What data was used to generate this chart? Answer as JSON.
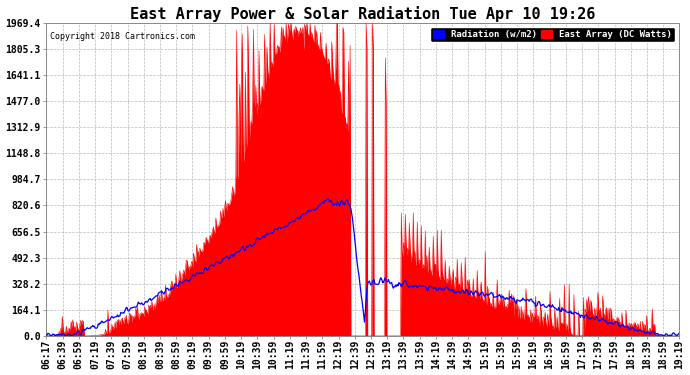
{
  "title": "East Array Power & Solar Radiation Tue Apr 10 19:26",
  "copyright": "Copyright 2018 Cartronics.com",
  "legend_radiation": "Radiation (w/m2)",
  "legend_east_array": "East Array (DC Watts)",
  "y_ticks": [
    0.0,
    164.1,
    328.2,
    492.3,
    656.5,
    820.6,
    984.7,
    1148.8,
    1312.9,
    1477.0,
    1641.1,
    1805.3,
    1969.4
  ],
  "y_max": 1969.4,
  "x_labels": [
    "06:17",
    "06:39",
    "06:59",
    "07:19",
    "07:39",
    "07:59",
    "08:19",
    "08:39",
    "08:59",
    "09:19",
    "09:39",
    "09:59",
    "10:19",
    "10:39",
    "10:59",
    "11:19",
    "11:39",
    "11:59",
    "12:19",
    "12:39",
    "12:59",
    "13:19",
    "13:39",
    "13:59",
    "14:19",
    "14:39",
    "14:59",
    "15:19",
    "15:39",
    "15:59",
    "16:19",
    "16:39",
    "16:59",
    "17:19",
    "17:39",
    "17:59",
    "18:19",
    "18:39",
    "18:59",
    "19:19"
  ],
  "background_color": "#ffffff",
  "plot_bg_color": "#ffffff",
  "grid_color": "#aaaaaa",
  "red_fill_color": "#ff0000",
  "blue_line_color": "#0000ff",
  "title_fontsize": 11,
  "tick_fontsize": 7
}
